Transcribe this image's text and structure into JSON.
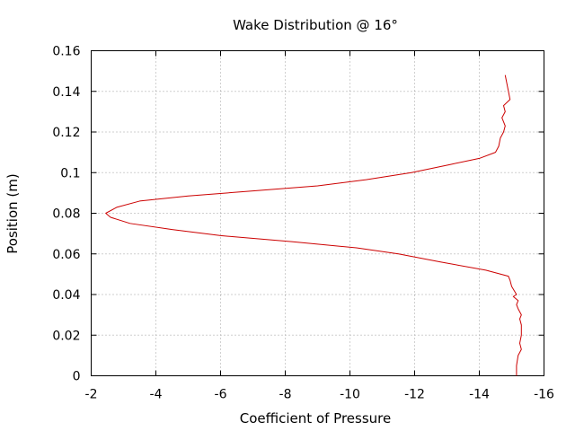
{
  "chart_data": {
    "type": "line",
    "title": "Wake Distribution @ 16°",
    "xlabel": "Coefficient of Pressure",
    "ylabel": "Position (m)",
    "xlim": [
      -2,
      -16
    ],
    "ylim": [
      0,
      0.16
    ],
    "x_ticks": [
      -2,
      -4,
      -6,
      -8,
      -10,
      -12,
      -14,
      -16
    ],
    "y_ticks": [
      0,
      0.02,
      0.04,
      0.06,
      0.08,
      0.1,
      0.12,
      0.14,
      0.16
    ],
    "x_tick_labels": [
      "-2",
      "-4",
      "-6",
      "-8",
      "-10",
      "-12",
      "-14",
      "-16"
    ],
    "y_tick_labels": [
      "0",
      "0.02",
      "0.04",
      "0.06",
      "0.08",
      "0.1",
      "0.12",
      "0.14",
      "0.16"
    ],
    "grid": true,
    "series": [
      {
        "color": "#cc0000",
        "x": [
          -15.15,
          -15.15,
          -15.2,
          -15.3,
          -15.25,
          -15.3,
          -15.3,
          -15.25,
          -15.3,
          -15.2,
          -15.15,
          -15.2,
          -15.05,
          -15.15,
          -15.0,
          -14.95,
          -14.9,
          -14.2,
          -12.8,
          -11.5,
          -10.2,
          -8.2,
          -6.0,
          -4.5,
          -3.2,
          -2.6,
          -2.45,
          -2.8,
          -3.5,
          -5.0,
          -7.0,
          -9.0,
          -10.5,
          -11.9,
          -13.1,
          -14.0,
          -14.5,
          -14.6,
          -14.65,
          -14.75,
          -14.8,
          -14.7,
          -14.8,
          -14.75,
          -14.95,
          -14.9,
          -14.85,
          -14.8
        ],
        "y": [
          0.0,
          0.005,
          0.01,
          0.013,
          0.016,
          0.02,
          0.025,
          0.028,
          0.03,
          0.033,
          0.035,
          0.037,
          0.039,
          0.04,
          0.044,
          0.047,
          0.049,
          0.052,
          0.056,
          0.06,
          0.063,
          0.066,
          0.069,
          0.072,
          0.075,
          0.078,
          0.08,
          0.083,
          0.086,
          0.0885,
          0.091,
          0.0935,
          0.0965,
          0.1,
          0.104,
          0.107,
          0.11,
          0.113,
          0.117,
          0.12,
          0.123,
          0.127,
          0.13,
          0.133,
          0.136,
          0.14,
          0.144,
          0.148
        ]
      }
    ]
  }
}
